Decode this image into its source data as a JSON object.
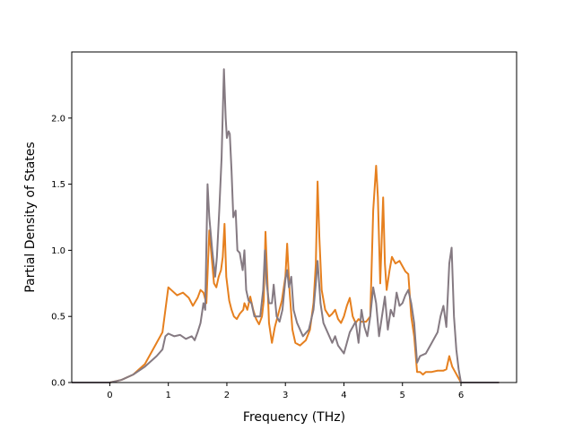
{
  "chart_data": {
    "type": "line",
    "title": "",
    "xlabel": "Frequency (THz)",
    "ylabel": "Partial Density of States",
    "xlim": [
      -0.65,
      6.95
    ],
    "ylim": [
      0.0,
      2.5
    ],
    "x_ticks": [
      0,
      1,
      2,
      3,
      4,
      5,
      6
    ],
    "y_ticks": [
      0.0,
      0.5,
      1.0,
      1.5,
      2.0
    ],
    "x_tick_labels": [
      "0",
      "1",
      "2",
      "3",
      "4",
      "5",
      "6"
    ],
    "y_tick_labels": [
      "0.0",
      "0.5",
      "1.0",
      "1.5",
      "2.0"
    ],
    "grid": false,
    "legend": "none",
    "series": [
      {
        "color": "#e6801f",
        "points": [
          [
            -0.65,
            0.0
          ],
          [
            0.0,
            0.0
          ],
          [
            0.2,
            0.02
          ],
          [
            0.4,
            0.06
          ],
          [
            0.6,
            0.14
          ],
          [
            0.8,
            0.3
          ],
          [
            0.9,
            0.38
          ],
          [
            0.95,
            0.55
          ],
          [
            1.0,
            0.72
          ],
          [
            1.05,
            0.7
          ],
          [
            1.15,
            0.66
          ],
          [
            1.25,
            0.68
          ],
          [
            1.35,
            0.64
          ],
          [
            1.42,
            0.58
          ],
          [
            1.5,
            0.64
          ],
          [
            1.55,
            0.7
          ],
          [
            1.6,
            0.68
          ],
          [
            1.65,
            0.6
          ],
          [
            1.7,
            1.15
          ],
          [
            1.74,
            0.95
          ],
          [
            1.78,
            0.75
          ],
          [
            1.82,
            0.72
          ],
          [
            1.86,
            0.8
          ],
          [
            1.9,
            0.85
          ],
          [
            1.93,
            0.95
          ],
          [
            1.96,
            1.2
          ],
          [
            1.99,
            0.8
          ],
          [
            2.04,
            0.62
          ],
          [
            2.08,
            0.55
          ],
          [
            2.12,
            0.5
          ],
          [
            2.17,
            0.48
          ],
          [
            2.22,
            0.52
          ],
          [
            2.28,
            0.55
          ],
          [
            2.3,
            0.6
          ],
          [
            2.35,
            0.55
          ],
          [
            2.4,
            0.65
          ],
          [
            2.45,
            0.55
          ],
          [
            2.5,
            0.48
          ],
          [
            2.55,
            0.44
          ],
          [
            2.6,
            0.5
          ],
          [
            2.63,
            0.62
          ],
          [
            2.66,
            1.14
          ],
          [
            2.69,
            0.8
          ],
          [
            2.72,
            0.45
          ],
          [
            2.77,
            0.3
          ],
          [
            2.82,
            0.42
          ],
          [
            2.88,
            0.52
          ],
          [
            2.94,
            0.62
          ],
          [
            3.0,
            0.8
          ],
          [
            3.03,
            1.05
          ],
          [
            3.07,
            0.7
          ],
          [
            3.12,
            0.4
          ],
          [
            3.17,
            0.3
          ],
          [
            3.25,
            0.28
          ],
          [
            3.35,
            0.32
          ],
          [
            3.42,
            0.4
          ],
          [
            3.48,
            0.6
          ],
          [
            3.52,
            0.9
          ],
          [
            3.55,
            1.52
          ],
          [
            3.58,
            1.1
          ],
          [
            3.62,
            0.7
          ],
          [
            3.68,
            0.55
          ],
          [
            3.75,
            0.5
          ],
          [
            3.8,
            0.52
          ],
          [
            3.85,
            0.55
          ],
          [
            3.9,
            0.48
          ],
          [
            3.95,
            0.45
          ],
          [
            4.0,
            0.5
          ],
          [
            4.05,
            0.58
          ],
          [
            4.1,
            0.64
          ],
          [
            4.15,
            0.5
          ],
          [
            4.2,
            0.45
          ],
          [
            4.25,
            0.48
          ],
          [
            4.3,
            0.46
          ],
          [
            4.38,
            0.46
          ],
          [
            4.45,
            0.5
          ],
          [
            4.5,
            1.3
          ],
          [
            4.55,
            1.64
          ],
          [
            4.58,
            1.4
          ],
          [
            4.62,
            0.75
          ],
          [
            4.67,
            1.4
          ],
          [
            4.7,
            0.9
          ],
          [
            4.73,
            0.7
          ],
          [
            4.78,
            0.85
          ],
          [
            4.82,
            0.95
          ],
          [
            4.88,
            0.9
          ],
          [
            4.95,
            0.92
          ],
          [
            5.0,
            0.88
          ],
          [
            5.05,
            0.84
          ],
          [
            5.1,
            0.82
          ],
          [
            5.15,
            0.5
          ],
          [
            5.2,
            0.35
          ],
          [
            5.25,
            0.08
          ],
          [
            5.3,
            0.08
          ],
          [
            5.35,
            0.06
          ],
          [
            5.4,
            0.08
          ],
          [
            5.5,
            0.08
          ],
          [
            5.6,
            0.09
          ],
          [
            5.7,
            0.09
          ],
          [
            5.75,
            0.1
          ],
          [
            5.8,
            0.2
          ],
          [
            5.85,
            0.12
          ],
          [
            5.9,
            0.08
          ],
          [
            5.95,
            0.04
          ],
          [
            6.0,
            0.0
          ],
          [
            6.65,
            0.0
          ]
        ]
      },
      {
        "color": "#857a82",
        "points": [
          [
            -0.65,
            0.0
          ],
          [
            0.0,
            0.0
          ],
          [
            0.2,
            0.02
          ],
          [
            0.4,
            0.06
          ],
          [
            0.6,
            0.12
          ],
          [
            0.8,
            0.2
          ],
          [
            0.9,
            0.25
          ],
          [
            0.95,
            0.35
          ],
          [
            1.0,
            0.37
          ],
          [
            1.1,
            0.35
          ],
          [
            1.2,
            0.36
          ],
          [
            1.3,
            0.33
          ],
          [
            1.4,
            0.35
          ],
          [
            1.45,
            0.32
          ],
          [
            1.5,
            0.38
          ],
          [
            1.55,
            0.45
          ],
          [
            1.6,
            0.6
          ],
          [
            1.63,
            0.55
          ],
          [
            1.67,
            1.5
          ],
          [
            1.7,
            1.25
          ],
          [
            1.75,
            1.0
          ],
          [
            1.8,
            0.8
          ],
          [
            1.83,
            0.95
          ],
          [
            1.87,
            1.3
          ],
          [
            1.91,
            1.7
          ],
          [
            1.95,
            2.37
          ],
          [
            1.98,
            2.0
          ],
          [
            2.0,
            1.85
          ],
          [
            2.03,
            1.9
          ],
          [
            2.05,
            1.88
          ],
          [
            2.08,
            1.6
          ],
          [
            2.11,
            1.25
          ],
          [
            2.15,
            1.3
          ],
          [
            2.18,
            1.0
          ],
          [
            2.22,
            0.98
          ],
          [
            2.27,
            0.85
          ],
          [
            2.3,
            1.0
          ],
          [
            2.33,
            0.7
          ],
          [
            2.37,
            0.62
          ],
          [
            2.42,
            0.6
          ],
          [
            2.47,
            0.5
          ],
          [
            2.52,
            0.5
          ],
          [
            2.57,
            0.5
          ],
          [
            2.62,
            0.7
          ],
          [
            2.65,
            1.0
          ],
          [
            2.68,
            0.75
          ],
          [
            2.72,
            0.6
          ],
          [
            2.77,
            0.6
          ],
          [
            2.8,
            0.74
          ],
          [
            2.85,
            0.5
          ],
          [
            2.9,
            0.46
          ],
          [
            2.95,
            0.55
          ],
          [
            3.0,
            0.78
          ],
          [
            3.03,
            0.85
          ],
          [
            3.06,
            0.72
          ],
          [
            3.1,
            0.8
          ],
          [
            3.14,
            0.55
          ],
          [
            3.2,
            0.45
          ],
          [
            3.3,
            0.35
          ],
          [
            3.4,
            0.4
          ],
          [
            3.48,
            0.55
          ],
          [
            3.52,
            0.75
          ],
          [
            3.55,
            0.92
          ],
          [
            3.6,
            0.6
          ],
          [
            3.65,
            0.45
          ],
          [
            3.7,
            0.4
          ],
          [
            3.75,
            0.35
          ],
          [
            3.8,
            0.3
          ],
          [
            3.85,
            0.35
          ],
          [
            3.9,
            0.28
          ],
          [
            3.95,
            0.25
          ],
          [
            4.0,
            0.22
          ],
          [
            4.05,
            0.3
          ],
          [
            4.1,
            0.38
          ],
          [
            4.15,
            0.42
          ],
          [
            4.2,
            0.46
          ],
          [
            4.25,
            0.3
          ],
          [
            4.3,
            0.55
          ],
          [
            4.35,
            0.42
          ],
          [
            4.4,
            0.35
          ],
          [
            4.45,
            0.5
          ],
          [
            4.5,
            0.72
          ],
          [
            4.55,
            0.6
          ],
          [
            4.6,
            0.35
          ],
          [
            4.65,
            0.5
          ],
          [
            4.7,
            0.65
          ],
          [
            4.75,
            0.4
          ],
          [
            4.8,
            0.55
          ],
          [
            4.85,
            0.5
          ],
          [
            4.9,
            0.68
          ],
          [
            4.95,
            0.58
          ],
          [
            5.0,
            0.6
          ],
          [
            5.05,
            0.66
          ],
          [
            5.1,
            0.7
          ],
          [
            5.15,
            0.6
          ],
          [
            5.2,
            0.45
          ],
          [
            5.25,
            0.15
          ],
          [
            5.3,
            0.2
          ],
          [
            5.4,
            0.22
          ],
          [
            5.5,
            0.3
          ],
          [
            5.6,
            0.38
          ],
          [
            5.65,
            0.5
          ],
          [
            5.7,
            0.58
          ],
          [
            5.75,
            0.42
          ],
          [
            5.8,
            0.9
          ],
          [
            5.84,
            1.02
          ],
          [
            5.88,
            0.5
          ],
          [
            5.92,
            0.25
          ],
          [
            5.96,
            0.1
          ],
          [
            6.0,
            0.0
          ],
          [
            6.65,
            0.0
          ]
        ]
      }
    ]
  }
}
